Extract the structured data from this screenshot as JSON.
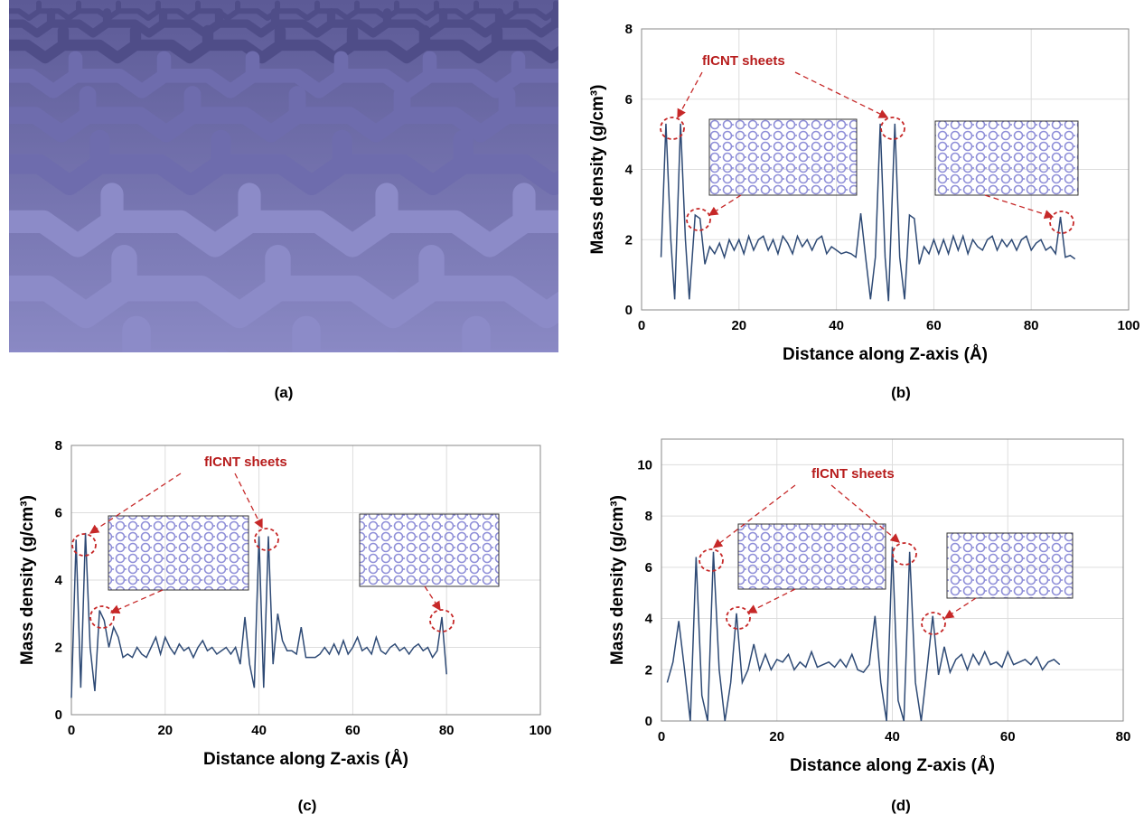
{
  "panel_a": {
    "label": "(a)"
  },
  "chart_data": [
    {
      "type": "line",
      "label": "(b)",
      "xlabel": "Distance along Z-axis (Å)",
      "ylabel": "Mass density (g/cm³)",
      "annotation": "flCNT sheets",
      "xlim": [
        0,
        100
      ],
      "ylim": [
        0,
        8
      ],
      "xticks": [
        0,
        20,
        40,
        60,
        80,
        100
      ],
      "yticks": [
        0,
        2,
        4,
        6,
        8
      ],
      "grid": true,
      "color": "#2e4a75",
      "x": [
        4,
        5,
        6,
        6.8,
        8,
        9,
        9.8,
        11,
        12,
        13,
        14,
        15,
        16,
        17,
        18,
        19,
        20,
        21,
        22,
        23,
        24,
        25,
        26,
        27,
        28,
        29,
        30,
        31,
        32,
        33,
        34,
        35,
        36,
        37,
        38,
        39,
        40,
        41,
        42,
        43,
        44,
        45,
        46,
        47,
        48,
        49,
        50,
        50.7,
        52,
        53,
        54,
        55,
        56,
        57,
        58,
        59,
        60,
        61,
        62,
        63,
        64,
        65,
        66,
        67,
        68,
        69,
        70,
        71,
        72,
        73,
        74,
        75,
        76,
        77,
        78,
        79,
        80,
        81,
        82,
        83,
        84,
        85,
        86,
        87,
        88,
        89
      ],
      "values": [
        1.5,
        5.3,
        2.0,
        0.3,
        5.3,
        2.0,
        0.3,
        2.7,
        2.6,
        1.3,
        1.8,
        1.6,
        1.9,
        1.5,
        2.0,
        1.7,
        2.0,
        1.6,
        2.1,
        1.7,
        2.0,
        2.1,
        1.7,
        2.0,
        1.6,
        2.1,
        1.9,
        1.6,
        2.1,
        1.8,
        2.0,
        1.7,
        2.0,
        2.1,
        1.6,
        1.8,
        1.7,
        1.6,
        1.65,
        1.6,
        1.5,
        2.75,
        1.5,
        0.3,
        1.5,
        5.3,
        1.5,
        0.25,
        5.3,
        1.5,
        0.3,
        2.7,
        2.6,
        1.3,
        1.8,
        1.6,
        2.0,
        1.6,
        2.0,
        1.6,
        2.1,
        1.7,
        2.1,
        1.6,
        2.0,
        1.8,
        1.7,
        2.0,
        2.1,
        1.7,
        2.0,
        1.8,
        2.0,
        1.7,
        2.0,
        2.1,
        1.7,
        1.9,
        2.0,
        1.7,
        1.8,
        1.6,
        2.65,
        1.5,
        1.55,
        1.45
      ]
    },
    {
      "type": "line",
      "label": "(c)",
      "xlabel": "Distance along Z-axis (Å)",
      "ylabel": "Mass density (g/cm³)",
      "annotation": "flCNT sheets",
      "xlim": [
        0,
        100
      ],
      "ylim": [
        0,
        8
      ],
      "xticks": [
        0,
        20,
        40,
        60,
        80,
        100
      ],
      "yticks": [
        0,
        2,
        4,
        6,
        8
      ],
      "grid": true,
      "color": "#2e4a75",
      "x": [
        0,
        1,
        2,
        3,
        4,
        5,
        6,
        7,
        8,
        9,
        10,
        11,
        12,
        13,
        14,
        15,
        16,
        17,
        18,
        19,
        20,
        21,
        22,
        23,
        24,
        25,
        26,
        27,
        28,
        29,
        30,
        31,
        32,
        33,
        34,
        35,
        36,
        37,
        38,
        39,
        40,
        41,
        42,
        43,
        44,
        45,
        46,
        47,
        48,
        49,
        50,
        51,
        52,
        53,
        54,
        55,
        56,
        57,
        58,
        59,
        60,
        61,
        62,
        63,
        64,
        65,
        66,
        67,
        68,
        69,
        70,
        71,
        72,
        73,
        74,
        75,
        76,
        77,
        78,
        79,
        80
      ],
      "values": [
        0.5,
        5.2,
        0.8,
        5.4,
        2.0,
        0.7,
        3.1,
        2.8,
        2.0,
        2.6,
        2.3,
        1.7,
        1.8,
        1.7,
        2.0,
        1.8,
        1.7,
        2.0,
        2.3,
        1.8,
        2.3,
        2.0,
        1.8,
        2.1,
        1.9,
        2.0,
        1.7,
        2.0,
        2.2,
        1.9,
        2.0,
        1.8,
        1.9,
        2.0,
        1.8,
        2.0,
        1.5,
        2.9,
        1.5,
        0.8,
        5.3,
        0.8,
        5.3,
        1.5,
        3.0,
        2.2,
        1.9,
        1.9,
        1.8,
        2.6,
        1.7,
        1.7,
        1.7,
        1.8,
        2.0,
        1.8,
        2.1,
        1.8,
        2.2,
        1.8,
        2.0,
        2.3,
        1.9,
        2.0,
        1.8,
        2.3,
        1.9,
        1.8,
        2.0,
        2.1,
        1.9,
        2.0,
        1.8,
        2.0,
        2.1,
        1.9,
        2.0,
        1.7,
        1.9,
        2.9,
        1.2
      ]
    },
    {
      "type": "line",
      "label": "(d)",
      "xlabel": "Distance along Z-axis (Å)",
      "ylabel": "Mass density (g/cm³)",
      "annotation": "flCNT sheets",
      "xlim": [
        0,
        80
      ],
      "ylim": [
        0,
        11
      ],
      "xticks": [
        0,
        20,
        40,
        60,
        80
      ],
      "yticks": [
        0,
        2,
        4,
        6,
        8,
        10
      ],
      "grid": true,
      "color": "#2e4a75",
      "x": [
        1,
        2,
        3,
        4,
        5,
        6,
        7,
        8,
        9,
        10,
        11,
        12,
        13,
        14,
        15,
        16,
        17,
        18,
        19,
        20,
        21,
        22,
        23,
        24,
        25,
        26,
        27,
        28,
        29,
        30,
        31,
        32,
        33,
        34,
        35,
        36,
        37,
        38,
        39,
        40,
        41,
        42,
        43,
        44,
        45,
        46,
        47,
        48,
        49,
        50,
        51,
        52,
        53,
        54,
        55,
        56,
        57,
        58,
        59,
        60,
        61,
        62,
        63,
        64,
        65,
        66,
        67,
        68,
        69
      ],
      "values": [
        1.5,
        2.3,
        3.9,
        2.0,
        0,
        6.4,
        1.0,
        0,
        6.6,
        2.0,
        0,
        1.5,
        4.2,
        1.5,
        2.0,
        3.0,
        2.0,
        2.6,
        2.0,
        2.4,
        2.3,
        2.6,
        2.0,
        2.3,
        2.1,
        2.7,
        2.1,
        2.2,
        2.3,
        2.1,
        2.4,
        2.1,
        2.6,
        2.0,
        1.9,
        2.2,
        4.1,
        1.5,
        0,
        6.8,
        0.8,
        0,
        6.6,
        1.5,
        0,
        2.0,
        4.1,
        1.8,
        2.9,
        1.9,
        2.4,
        2.6,
        2.0,
        2.6,
        2.2,
        2.7,
        2.2,
        2.3,
        2.1,
        2.7,
        2.2,
        2.3,
        2.4,
        2.2,
        2.5,
        2.0,
        2.3,
        2.4,
        2.2
      ]
    }
  ]
}
